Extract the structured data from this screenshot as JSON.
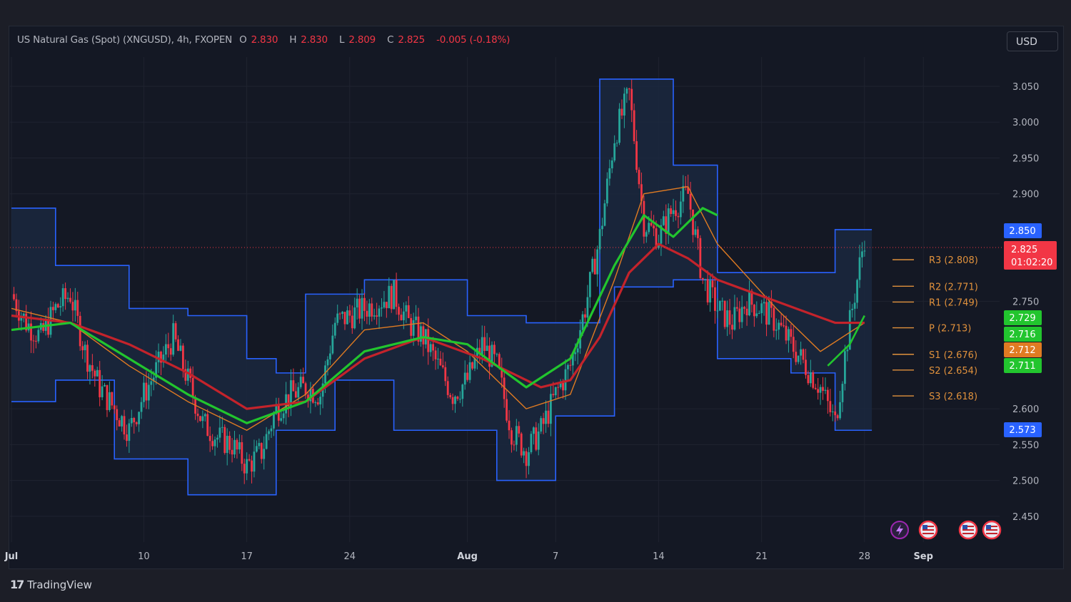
{
  "header": {
    "symbol": "US Natural Gas (Spot) (XNGUSD), 4h, FXOPEN",
    "o_label": "O",
    "o_value": "2.830",
    "h_label": "H",
    "h_value": "2.830",
    "l_label": "L",
    "l_value": "2.809",
    "c_label": "C",
    "c_value": "2.825",
    "change": "-0.005 (-0.18%)"
  },
  "currency": "USD",
  "footer_brand": "TradingView",
  "colors": {
    "up": "#26a69a",
    "down": "#f23645",
    "channel": "#2962ff",
    "ema_green": "#22c52e",
    "ema_red": "#c4232b",
    "ema_orange": "#e07b22",
    "pivot": "#e0913c"
  },
  "chart_data": {
    "type": "line",
    "title": "",
    "xlabel": "",
    "ylabel": "",
    "ylim": [
      2.42,
      3.09
    ],
    "x_ticks": [
      {
        "label": "Jul",
        "bold": true,
        "d": 0
      },
      {
        "label": "10",
        "bold": false,
        "d": 9
      },
      {
        "label": "17",
        "bold": false,
        "d": 16
      },
      {
        "label": "24",
        "bold": false,
        "d": 23
      },
      {
        "label": "Aug",
        "bold": true,
        "d": 31
      },
      {
        "label": "7",
        "bold": false,
        "d": 37
      },
      {
        "label": "14",
        "bold": false,
        "d": 44
      },
      {
        "label": "21",
        "bold": false,
        "d": 51
      },
      {
        "label": "28",
        "bold": false,
        "d": 58
      },
      {
        "label": "Sep",
        "bold": true,
        "d": 62
      }
    ],
    "y_ticks": [
      3.05,
      3.0,
      2.95,
      2.9,
      2.75,
      2.6,
      2.55,
      2.5,
      2.45
    ],
    "price_tags": [
      {
        "label": "2.850",
        "value": 2.85,
        "color": "#2962ff"
      },
      {
        "label": "2.729",
        "value": 2.729,
        "color": "#22c52e"
      },
      {
        "label": "2.716",
        "value": 2.716,
        "color": "#22c52e"
      },
      {
        "label": "2.712",
        "value": 2.712,
        "color": "#e07b22"
      },
      {
        "label": "2.711",
        "value": 2.711,
        "color": "#22c52e"
      },
      {
        "label": "2.573",
        "value": 2.573,
        "color": "#2962ff"
      }
    ],
    "last_price": {
      "label": "2.825",
      "countdown": "01:02:20",
      "value": 2.825,
      "color": "#f23645"
    },
    "pivots": [
      {
        "label": "R3 (2.808)",
        "value": 2.808
      },
      {
        "label": "R2 (2.771)",
        "value": 2.771
      },
      {
        "label": "R1 (2.749)",
        "value": 2.749
      },
      {
        "label": "P (2.713)",
        "value": 2.713
      },
      {
        "label": "S1 (2.676)",
        "value": 2.676
      },
      {
        "label": "S2 (2.654)",
        "value": 2.654
      },
      {
        "label": "S3 (2.618)",
        "value": 2.618
      }
    ],
    "series": [
      {
        "key": "close",
        "d": [
          0,
          1,
          2,
          3,
          4,
          5,
          6,
          7,
          8,
          9,
          10,
          11,
          12,
          13,
          14,
          15,
          16,
          17,
          18,
          19,
          20,
          21,
          22,
          23,
          24,
          25,
          26,
          27,
          28,
          29,
          30,
          31,
          32,
          33,
          34,
          35,
          36,
          37,
          38,
          39,
          40,
          41,
          42,
          43,
          44,
          45,
          46,
          47,
          48,
          49,
          50,
          51,
          52,
          53,
          54,
          55,
          56,
          57,
          58
        ],
        "values": [
          2.76,
          2.72,
          2.7,
          2.74,
          2.76,
          2.68,
          2.63,
          2.6,
          2.57,
          2.62,
          2.66,
          2.7,
          2.64,
          2.58,
          2.56,
          2.55,
          2.52,
          2.54,
          2.6,
          2.62,
          2.63,
          2.62,
          2.72,
          2.73,
          2.74,
          2.75,
          2.76,
          2.72,
          2.7,
          2.66,
          2.62,
          2.64,
          2.69,
          2.66,
          2.57,
          2.54,
          2.57,
          2.62,
          2.66,
          2.74,
          2.84,
          2.98,
          3.04,
          2.86,
          2.84,
          2.88,
          2.9,
          2.78,
          2.74,
          2.72,
          2.75,
          2.74,
          2.72,
          2.69,
          2.66,
          2.63,
          2.58,
          2.72,
          2.84
        ]
      },
      {
        "key": "channel_high",
        "d": [
          0,
          3,
          3,
          8,
          8,
          12,
          12,
          16,
          16,
          18,
          18,
          20,
          20,
          24,
          24,
          31,
          31,
          35,
          35,
          40,
          40,
          45,
          45,
          48,
          48,
          52,
          52,
          56,
          56,
          58.5
        ],
        "values": [
          2.88,
          2.88,
          2.8,
          2.8,
          2.74,
          2.74,
          2.73,
          2.73,
          2.67,
          2.67,
          2.65,
          2.65,
          2.76,
          2.76,
          2.78,
          2.78,
          2.73,
          2.73,
          2.72,
          2.72,
          3.06,
          3.06,
          2.94,
          2.94,
          2.79,
          2.79,
          2.79,
          2.79,
          2.85,
          2.85
        ]
      },
      {
        "key": "channel_low",
        "d": [
          0,
          3,
          3,
          7,
          7,
          12,
          12,
          18,
          18,
          22,
          22,
          26,
          26,
          29,
          29,
          33,
          33,
          37,
          37,
          41,
          41,
          45,
          45,
          48,
          48,
          53,
          53,
          56,
          56,
          58.5
        ],
        "values": [
          2.61,
          2.61,
          2.64,
          2.64,
          2.53,
          2.53,
          2.48,
          2.48,
          2.57,
          2.57,
          2.64,
          2.64,
          2.57,
          2.57,
          2.57,
          2.57,
          2.5,
          2.5,
          2.59,
          2.59,
          2.77,
          2.77,
          2.78,
          2.78,
          2.67,
          2.67,
          2.65,
          2.65,
          2.57,
          2.57
        ]
      },
      {
        "key": "ema_green",
        "d": [
          0,
          4,
          8,
          12,
          16,
          20,
          24,
          28,
          31,
          35,
          38,
          41,
          43,
          45,
          46,
          47,
          48
        ],
        "values": [
          2.71,
          2.72,
          2.67,
          2.62,
          2.58,
          2.61,
          2.68,
          2.7,
          2.69,
          2.63,
          2.67,
          2.8,
          2.87,
          2.84,
          2.86,
          2.88,
          2.87
        ]
      },
      {
        "key": "ema_red",
        "d": [
          0,
          4,
          8,
          12,
          16,
          20,
          24,
          28,
          32,
          36,
          38,
          40,
          42,
          44,
          46,
          48,
          52,
          56,
          58
        ],
        "values": [
          2.73,
          2.72,
          2.69,
          2.65,
          2.6,
          2.61,
          2.67,
          2.7,
          2.67,
          2.63,
          2.64,
          2.7,
          2.79,
          2.83,
          2.81,
          2.78,
          2.75,
          2.72,
          2.72
        ]
      },
      {
        "key": "ema_orange",
        "d": [
          0,
          4,
          8,
          12,
          16,
          20,
          24,
          28,
          31,
          35,
          38,
          41,
          43,
          46,
          48,
          52,
          55,
          58
        ],
        "values": [
          2.74,
          2.72,
          2.66,
          2.61,
          2.57,
          2.62,
          2.71,
          2.72,
          2.68,
          2.6,
          2.62,
          2.78,
          2.9,
          2.91,
          2.83,
          2.74,
          2.68,
          2.72
        ]
      },
      {
        "key": "ema_green_right",
        "d": [
          55.5,
          57,
          58
        ],
        "values": [
          2.66,
          2.69,
          2.73
        ]
      }
    ]
  }
}
